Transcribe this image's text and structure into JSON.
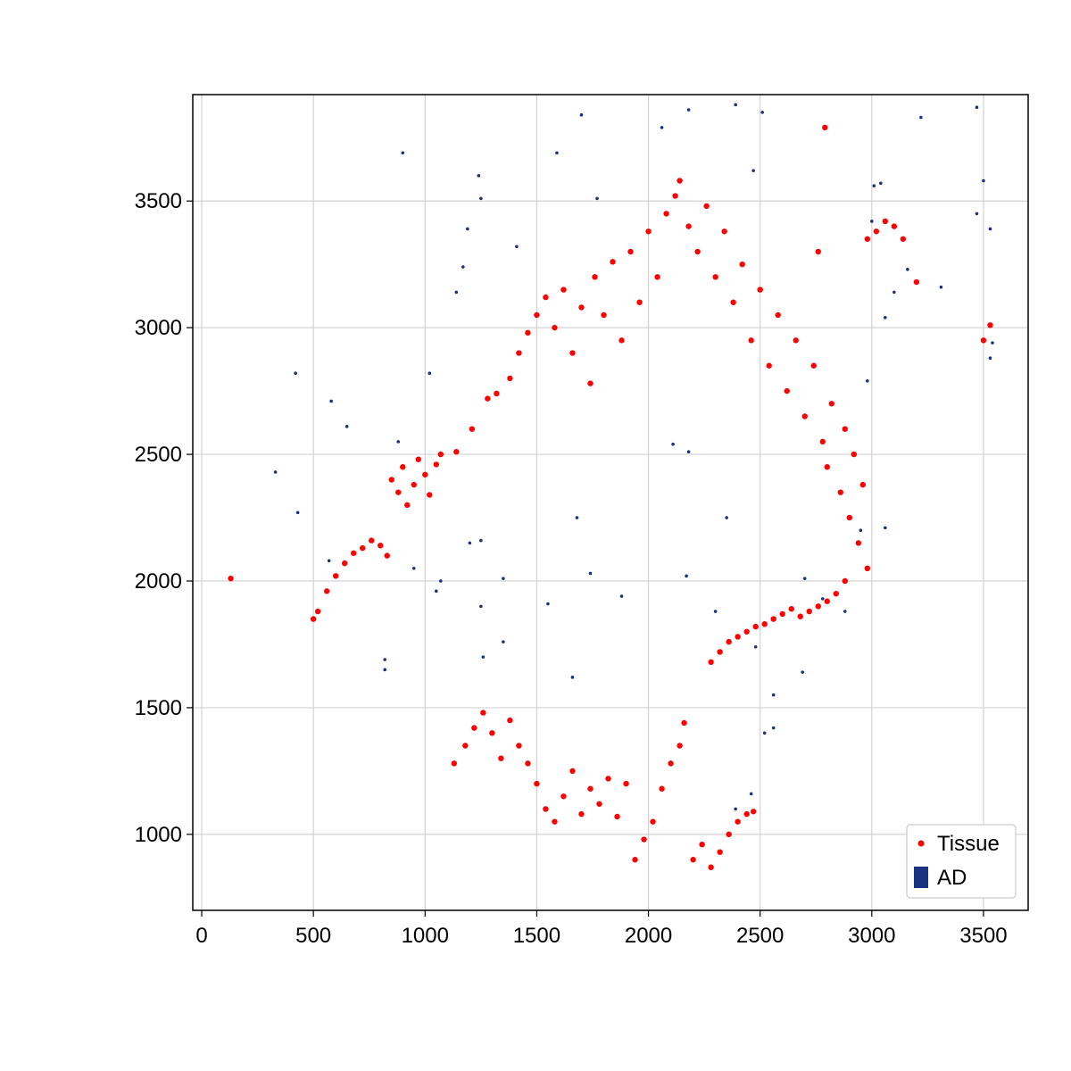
{
  "chart_data": {
    "type": "scatter",
    "title": "",
    "xlabel": "",
    "ylabel": "",
    "xlim": [
      -40,
      3700
    ],
    "ylim": [
      700,
      3920
    ],
    "xticks": [
      0,
      500,
      1000,
      1500,
      2000,
      2500,
      3000,
      3500
    ],
    "yticks": [
      1000,
      1500,
      2000,
      2500,
      3000,
      3500
    ],
    "xtick_labels": [
      "0",
      "500",
      "1000",
      "1500",
      "2000",
      "2500",
      "3000",
      "3500"
    ],
    "ytick_labels": [
      "1000",
      "1500",
      "2000",
      "2500",
      "3000",
      "3500"
    ],
    "grid": true,
    "legend_position": "bottom-right",
    "series": [
      {
        "name": "Tissue",
        "color": "#ff0000",
        "marker": "circle",
        "note_regions": "ring arc, left arm, lower band, right cluster",
        "points": [
          [
            130,
            2010
          ],
          [
            500,
            1850
          ],
          [
            520,
            1880
          ],
          [
            560,
            1960
          ],
          [
            600,
            2020
          ],
          [
            640,
            2070
          ],
          [
            680,
            2110
          ],
          [
            720,
            2130
          ],
          [
            760,
            2160
          ],
          [
            800,
            2140
          ],
          [
            830,
            2100
          ],
          [
            850,
            2400
          ],
          [
            880,
            2350
          ],
          [
            900,
            2450
          ],
          [
            920,
            2300
          ],
          [
            950,
            2380
          ],
          [
            970,
            2480
          ],
          [
            1000,
            2420
          ],
          [
            1020,
            2340
          ],
          [
            1050,
            2460
          ],
          [
            1070,
            2500
          ],
          [
            1140,
            2510
          ],
          [
            1210,
            2600
          ],
          [
            1280,
            2720
          ],
          [
            1320,
            2740
          ],
          [
            1380,
            2800
          ],
          [
            1420,
            2900
          ],
          [
            1460,
            2980
          ],
          [
            1500,
            3050
          ],
          [
            1540,
            3120
          ],
          [
            1580,
            3000
          ],
          [
            1620,
            3150
          ],
          [
            1660,
            2900
          ],
          [
            1700,
            3080
          ],
          [
            1740,
            2780
          ],
          [
            1760,
            3200
          ],
          [
            1800,
            3050
          ],
          [
            1840,
            3260
          ],
          [
            1880,
            2950
          ],
          [
            1920,
            3300
          ],
          [
            1960,
            3100
          ],
          [
            2000,
            3380
          ],
          [
            2040,
            3200
          ],
          [
            2080,
            3450
          ],
          [
            2120,
            3520
          ],
          [
            2140,
            3580
          ],
          [
            2180,
            3400
          ],
          [
            2220,
            3300
          ],
          [
            2260,
            3480
          ],
          [
            2300,
            3200
          ],
          [
            2340,
            3380
          ],
          [
            2380,
            3100
          ],
          [
            2420,
            3250
          ],
          [
            2460,
            2950
          ],
          [
            2500,
            3150
          ],
          [
            2540,
            2850
          ],
          [
            2580,
            3050
          ],
          [
            2620,
            2750
          ],
          [
            2660,
            2950
          ],
          [
            2700,
            2650
          ],
          [
            2740,
            2850
          ],
          [
            2760,
            3300
          ],
          [
            2780,
            2550
          ],
          [
            2800,
            2450
          ],
          [
            2820,
            2700
          ],
          [
            2860,
            2350
          ],
          [
            2880,
            2600
          ],
          [
            2900,
            2250
          ],
          [
            2920,
            2500
          ],
          [
            2940,
            2150
          ],
          [
            2960,
            2380
          ],
          [
            2980,
            2050
          ],
          [
            2880,
            2000
          ],
          [
            2840,
            1950
          ],
          [
            2800,
            1920
          ],
          [
            2760,
            1900
          ],
          [
            2720,
            1880
          ],
          [
            2680,
            1860
          ],
          [
            2640,
            1890
          ],
          [
            2600,
            1870
          ],
          [
            2560,
            1850
          ],
          [
            2520,
            1830
          ],
          [
            2480,
            1820
          ],
          [
            2440,
            1800
          ],
          [
            2400,
            1780
          ],
          [
            2360,
            1760
          ],
          [
            2320,
            1720
          ],
          [
            2280,
            1680
          ],
          [
            2980,
            3350
          ],
          [
            3020,
            3380
          ],
          [
            3060,
            3420
          ],
          [
            3100,
            3400
          ],
          [
            3140,
            3350
          ],
          [
            3200,
            3180
          ],
          [
            3500,
            2950
          ],
          [
            3530,
            3010
          ],
          [
            2790,
            3790
          ],
          [
            1130,
            1280
          ],
          [
            1180,
            1350
          ],
          [
            1220,
            1420
          ],
          [
            1260,
            1480
          ],
          [
            1300,
            1400
          ],
          [
            1340,
            1300
          ],
          [
            1380,
            1450
          ],
          [
            1420,
            1350
          ],
          [
            1460,
            1280
          ],
          [
            1500,
            1200
          ],
          [
            1540,
            1100
          ],
          [
            1580,
            1050
          ],
          [
            1620,
            1150
          ],
          [
            1660,
            1250
          ],
          [
            1700,
            1080
          ],
          [
            1740,
            1180
          ],
          [
            1780,
            1120
          ],
          [
            1820,
            1220
          ],
          [
            1860,
            1070
          ],
          [
            1900,
            1200
          ],
          [
            1940,
            900
          ],
          [
            1980,
            980
          ],
          [
            2020,
            1050
          ],
          [
            2060,
            1180
          ],
          [
            2100,
            1280
          ],
          [
            2140,
            1350
          ],
          [
            2160,
            1440
          ],
          [
            2200,
            900
          ],
          [
            2240,
            960
          ],
          [
            2280,
            870
          ],
          [
            2320,
            930
          ],
          [
            2360,
            1000
          ],
          [
            2400,
            1050
          ],
          [
            2440,
            1080
          ],
          [
            2470,
            1090
          ]
        ]
      },
      {
        "name": "AD",
        "color": "#1a3380",
        "marker": "square-dot",
        "points": [
          [
            330,
            2430
          ],
          [
            420,
            2820
          ],
          [
            430,
            2270
          ],
          [
            580,
            2710
          ],
          [
            650,
            2610
          ],
          [
            570,
            2080
          ],
          [
            820,
            1690
          ],
          [
            820,
            1650
          ],
          [
            900,
            3690
          ],
          [
            880,
            2550
          ],
          [
            950,
            2050
          ],
          [
            1020,
            2820
          ],
          [
            1050,
            1960
          ],
          [
            1070,
            2000
          ],
          [
            1140,
            3140
          ],
          [
            1170,
            3240
          ],
          [
            1190,
            3390
          ],
          [
            1240,
            3600
          ],
          [
            1250,
            3510
          ],
          [
            1200,
            2150
          ],
          [
            1250,
            2160
          ],
          [
            1250,
            1900
          ],
          [
            1260,
            1700
          ],
          [
            1350,
            1760
          ],
          [
            1350,
            2010
          ],
          [
            1410,
            3320
          ],
          [
            1550,
            1910
          ],
          [
            1590,
            3690
          ],
          [
            1680,
            2250
          ],
          [
            1700,
            3840
          ],
          [
            1740,
            2030
          ],
          [
            1770,
            3510
          ],
          [
            1880,
            1940
          ],
          [
            1660,
            1620
          ],
          [
            2060,
            3790
          ],
          [
            2110,
            2540
          ],
          [
            2170,
            2020
          ],
          [
            2180,
            2510
          ],
          [
            2180,
            3860
          ],
          [
            2350,
            2250
          ],
          [
            2390,
            3880
          ],
          [
            2470,
            3620
          ],
          [
            2510,
            3850
          ],
          [
            2300,
            1880
          ],
          [
            2560,
            1550
          ],
          [
            2520,
            1400
          ],
          [
            2560,
            1420
          ],
          [
            2690,
            1640
          ],
          [
            2980,
            2790
          ],
          [
            3000,
            3420
          ],
          [
            3010,
            3560
          ],
          [
            3040,
            3570
          ],
          [
            3060,
            3040
          ],
          [
            3100,
            3140
          ],
          [
            3160,
            3230
          ],
          [
            3310,
            3160
          ],
          [
            3220,
            3830
          ],
          [
            3470,
            3870
          ],
          [
            3470,
            3450
          ],
          [
            3500,
            3580
          ],
          [
            3530,
            3390
          ],
          [
            3530,
            2880
          ],
          [
            3540,
            2940
          ],
          [
            2880,
            1880
          ],
          [
            2780,
            1930
          ],
          [
            2700,
            2010
          ],
          [
            2950,
            2200
          ],
          [
            3060,
            2210
          ],
          [
            2480,
            1740
          ],
          [
            2460,
            1160
          ],
          [
            2390,
            1100
          ]
        ]
      }
    ],
    "legend": [
      {
        "label": "Tissue",
        "color": "#ff0000",
        "marker": "circle"
      },
      {
        "label": "AD",
        "color": "#1a3380",
        "marker": "square"
      }
    ]
  }
}
